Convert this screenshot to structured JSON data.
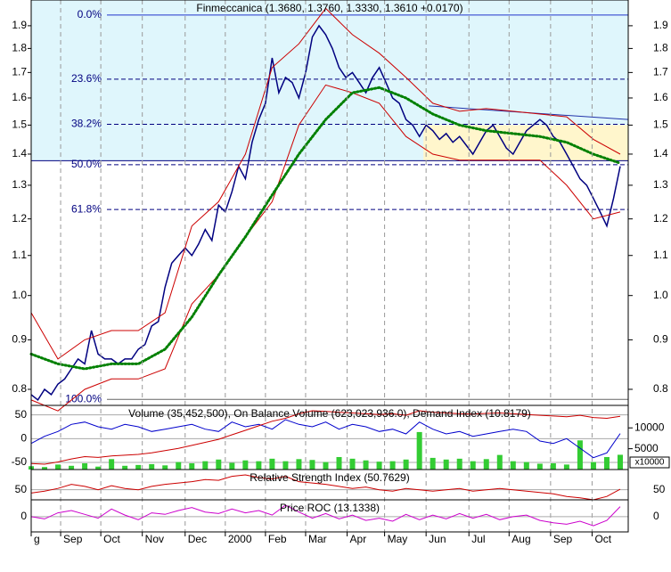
{
  "chart_data": [
    {
      "type": "line",
      "title": "Finmeccanica (1.3680, 1.3760, 1.3330, 1.3610 +0.0170)",
      "log_scale": true,
      "grid": true,
      "xlim": [
        0,
        446
      ],
      "ylim": [
        0.77,
        2.02
      ],
      "yticks": [
        0.8,
        0.9,
        {
          "value": 1,
          "label": "1.0"
        },
        1.1,
        1.2,
        1.3,
        1.4,
        1.5,
        1.6,
        1.7,
        1.8,
        1.9
      ],
      "xticks": [
        {
          "value": 0,
          "label": "g"
        },
        {
          "value": 22,
          "label": "Sep"
        },
        {
          "value": 52,
          "label": "Oct"
        },
        {
          "value": 83,
          "label": "Nov"
        },
        {
          "value": 115,
          "label": "Dec"
        },
        {
          "value": 145,
          "label": "2000"
        },
        {
          "value": 175,
          "label": "Feb"
        },
        {
          "value": 205,
          "label": "Mar"
        },
        {
          "value": 236,
          "label": "Apr"
        },
        {
          "value": 264,
          "label": "May"
        },
        {
          "value": 295,
          "label": "Jun"
        },
        {
          "value": 327,
          "label": "Jul"
        },
        {
          "value": 357,
          "label": "Aug"
        },
        {
          "value": 388,
          "label": "Sep"
        },
        {
          "value": 419,
          "label": "Oct"
        }
      ],
      "fib_levels": [
        {
          "value": 1.949,
          "label": "0.0%"
        },
        {
          "value": 1.673,
          "label": "23.6%"
        },
        {
          "value": 1.503,
          "label": "38.2%"
        },
        {
          "value": 1.365,
          "label": "50.0%"
        },
        {
          "value": 1.227,
          "label": "61.8%"
        },
        {
          "value": 0.781,
          "label": "100.0%"
        }
      ],
      "support": {
        "value": 1.378,
        "fill_above": "#dff6fc"
      },
      "box": {
        "x": [
          293,
          446
        ],
        "y": [
          1.378,
          1.5
        ],
        "color": "#fff6cc"
      },
      "trendline": {
        "x": [
          297,
          446
        ],
        "y": [
          1.57,
          1.52
        ],
        "color": "#2233aa"
      },
      "series": [
        {
          "color": "#000080",
          "width": 1.5,
          "x": [
            0,
            5,
            10,
            15,
            20,
            25,
            30,
            35,
            40,
            45,
            50,
            55,
            60,
            65,
            70,
            75,
            80,
            85,
            90,
            95,
            100,
            105,
            110,
            115,
            120,
            125,
            130,
            135,
            140,
            145,
            150,
            155,
            160,
            165,
            170,
            175,
            180,
            185,
            190,
            195,
            200,
            205,
            210,
            215,
            220,
            225,
            230,
            235,
            240,
            245,
            250,
            255,
            260,
            265,
            270,
            275,
            280,
            285,
            290,
            295,
            300,
            305,
            310,
            315,
            320,
            325,
            330,
            335,
            340,
            345,
            350,
            355,
            360,
            365,
            370,
            375,
            380,
            385,
            390,
            395,
            400,
            405,
            410,
            415,
            420,
            425,
            430,
            435,
            440
          ],
          "values": [
            0.79,
            0.78,
            0.8,
            0.79,
            0.81,
            0.82,
            0.84,
            0.86,
            0.85,
            0.92,
            0.87,
            0.86,
            0.86,
            0.85,
            0.86,
            0.86,
            0.88,
            0.89,
            0.93,
            0.94,
            1.02,
            1.08,
            1.1,
            1.12,
            1.1,
            1.13,
            1.17,
            1.14,
            1.24,
            1.22,
            1.28,
            1.36,
            1.32,
            1.44,
            1.52,
            1.58,
            1.76,
            1.62,
            1.68,
            1.66,
            1.6,
            1.7,
            1.85,
            1.9,
            1.86,
            1.8,
            1.72,
            1.68,
            1.7,
            1.66,
            1.62,
            1.68,
            1.72,
            1.66,
            1.6,
            1.58,
            1.52,
            1.5,
            1.46,
            1.5,
            1.48,
            1.45,
            1.47,
            1.44,
            1.46,
            1.43,
            1.4,
            1.44,
            1.48,
            1.5,
            1.46,
            1.42,
            1.4,
            1.44,
            1.48,
            1.5,
            1.52,
            1.5,
            1.46,
            1.44,
            1.4,
            1.36,
            1.32,
            1.3,
            1.26,
            1.22,
            1.18,
            1.26,
            1.36
          ]
        },
        {
          "color": "#cc0000",
          "width": 1,
          "x": [
            0,
            20,
            40,
            60,
            80,
            100,
            120,
            140,
            160,
            180,
            200,
            220,
            240,
            260,
            280,
            300,
            320,
            340,
            360,
            380,
            400,
            420,
            440
          ],
          "values": [
            0.96,
            0.86,
            0.9,
            0.92,
            0.92,
            0.96,
            1.18,
            1.25,
            1.4,
            1.72,
            1.82,
            1.98,
            1.86,
            1.78,
            1.68,
            1.58,
            1.55,
            1.56,
            1.55,
            1.54,
            1.53,
            1.45,
            1.4
          ]
        },
        {
          "color": "#cc0000",
          "width": 1,
          "x": [
            0,
            20,
            40,
            60,
            80,
            100,
            120,
            140,
            160,
            180,
            200,
            220,
            240,
            260,
            280,
            300,
            320,
            340,
            360,
            380,
            400,
            420,
            440
          ],
          "values": [
            0.78,
            0.76,
            0.8,
            0.82,
            0.82,
            0.84,
            0.98,
            1.05,
            1.15,
            1.25,
            1.5,
            1.65,
            1.62,
            1.58,
            1.46,
            1.4,
            1.38,
            1.38,
            1.38,
            1.38,
            1.3,
            1.2,
            1.22
          ]
        },
        {
          "color": "#008000",
          "width": 3,
          "dotted": true,
          "x": [
            0,
            20,
            40,
            60,
            80,
            100,
            120,
            140,
            160,
            180,
            200,
            220,
            240,
            260,
            280,
            300,
            320,
            340,
            360,
            380,
            400,
            420,
            440
          ],
          "values": [
            0.87,
            0.85,
            0.84,
            0.85,
            0.85,
            0.88,
            0.95,
            1.05,
            1.15,
            1.27,
            1.4,
            1.52,
            1.62,
            1.64,
            1.6,
            1.54,
            1.5,
            1.48,
            1.47,
            1.46,
            1.44,
            1.4,
            1.37
          ]
        }
      ]
    },
    {
      "type": "bar",
      "title": "Volume (35,452,500), On Balance Volume (623,023,936.0), Demand Index (10.8179)",
      "ylim": [
        -65,
        70
      ],
      "yticks": [
        50,
        0,
        -50
      ],
      "y2lim": [
        0,
        15400
      ],
      "y2ticks": [
        5000,
        10000
      ],
      "y2_unit": "x10000",
      "x": [
        0,
        10,
        20,
        30,
        40,
        50,
        60,
        70,
        80,
        90,
        100,
        110,
        120,
        130,
        140,
        150,
        160,
        170,
        180,
        190,
        200,
        210,
        220,
        230,
        240,
        250,
        260,
        270,
        280,
        290,
        300,
        310,
        320,
        330,
        340,
        350,
        360,
        370,
        380,
        390,
        400,
        410,
        420,
        430,
        440
      ],
      "series": [
        {
          "type": "bar",
          "axis": "y2",
          "color": "#33cc33",
          "values": [
            800,
            600,
            1200,
            900,
            1500,
            700,
            2500,
            900,
            1100,
            1300,
            1000,
            1800,
            1500,
            2000,
            2400,
            1600,
            2200,
            2000,
            2600,
            2000,
            2500,
            2300,
            1800,
            3000,
            2600,
            2200,
            1900,
            2000,
            2400,
            9000,
            2800,
            2400,
            2600,
            2000,
            2500,
            3500,
            2000,
            1800,
            1400,
            1500,
            1200,
            7000,
            1800,
            3000,
            3545.25
          ]
        },
        {
          "type": "line",
          "color": "#0000cc",
          "values": [
            -10,
            5,
            15,
            30,
            35,
            25,
            20,
            30,
            25,
            15,
            20,
            25,
            30,
            20,
            15,
            35,
            25,
            30,
            20,
            40,
            30,
            25,
            35,
            20,
            30,
            25,
            15,
            20,
            10,
            35,
            20,
            10,
            15,
            5,
            10,
            15,
            20,
            15,
            -5,
            -10,
            0,
            -20,
            -40,
            -30,
            10.8179
          ]
        },
        {
          "type": "line",
          "axis": "none",
          "color": "#cc0000",
          "values": [
            310000000,
            305000000,
            320000000,
            340000000,
            355000000,
            350000000,
            360000000,
            365000000,
            370000000,
            380000000,
            395000000,
            410000000,
            430000000,
            450000000,
            470000000,
            500000000,
            530000000,
            560000000,
            590000000,
            610000000,
            640000000,
            660000000,
            655000000,
            650000000,
            645000000,
            640000000,
            635000000,
            640000000,
            630000000,
            660000000,
            650000000,
            645000000,
            640000000,
            638000000,
            642000000,
            645000000,
            640000000,
            635000000,
            630000000,
            625000000,
            620000000,
            630000000,
            615000000,
            610000000,
            623023936
          ]
        }
      ]
    },
    {
      "type": "line",
      "title": "Relative Strength Index (50.7629)",
      "ylim": [
        35,
        80
      ],
      "yticks": [
        50
      ],
      "x": [
        0,
        10,
        20,
        30,
        40,
        50,
        60,
        70,
        80,
        90,
        100,
        110,
        120,
        130,
        140,
        150,
        160,
        170,
        180,
        190,
        200,
        210,
        220,
        230,
        240,
        250,
        260,
        270,
        280,
        290,
        300,
        310,
        320,
        330,
        340,
        350,
        360,
        370,
        380,
        390,
        400,
        410,
        420,
        430,
        440
      ],
      "series": [
        {
          "type": "line",
          "color": "#cc0000",
          "values": [
            45,
            48,
            52,
            58,
            55,
            50,
            56,
            52,
            50,
            55,
            58,
            60,
            62,
            65,
            64,
            70,
            72,
            68,
            66,
            70,
            62,
            60,
            58,
            55,
            52,
            54,
            50,
            48,
            52,
            50,
            48,
            50,
            52,
            48,
            50,
            52,
            50,
            48,
            46,
            44,
            40,
            38,
            35,
            40,
            50.7629
          ]
        }
      ]
    },
    {
      "type": "line",
      "title": "Price ROC (13.1338)",
      "ylim": [
        -20,
        22
      ],
      "yticks": [
        0
      ],
      "x": [
        0,
        10,
        20,
        30,
        40,
        50,
        60,
        70,
        80,
        90,
        100,
        110,
        120,
        130,
        140,
        150,
        160,
        170,
        180,
        190,
        200,
        210,
        220,
        230,
        240,
        250,
        260,
        270,
        280,
        290,
        300,
        310,
        320,
        330,
        340,
        350,
        360,
        370,
        380,
        390,
        400,
        410,
        420,
        430,
        440
      ],
      "series": [
        {
          "type": "line",
          "color": "#cc00cc",
          "values": [
            0,
            -3,
            5,
            8,
            3,
            -2,
            10,
            2,
            -4,
            5,
            3,
            8,
            12,
            6,
            4,
            10,
            5,
            8,
            2,
            15,
            6,
            -2,
            4,
            -3,
            2,
            -5,
            -2,
            -6,
            3,
            -4,
            2,
            -3,
            4,
            -2,
            3,
            -4,
            0,
            2,
            -5,
            -8,
            -10,
            -6,
            -12,
            -5,
            13.1338
          ]
        }
      ]
    }
  ]
}
